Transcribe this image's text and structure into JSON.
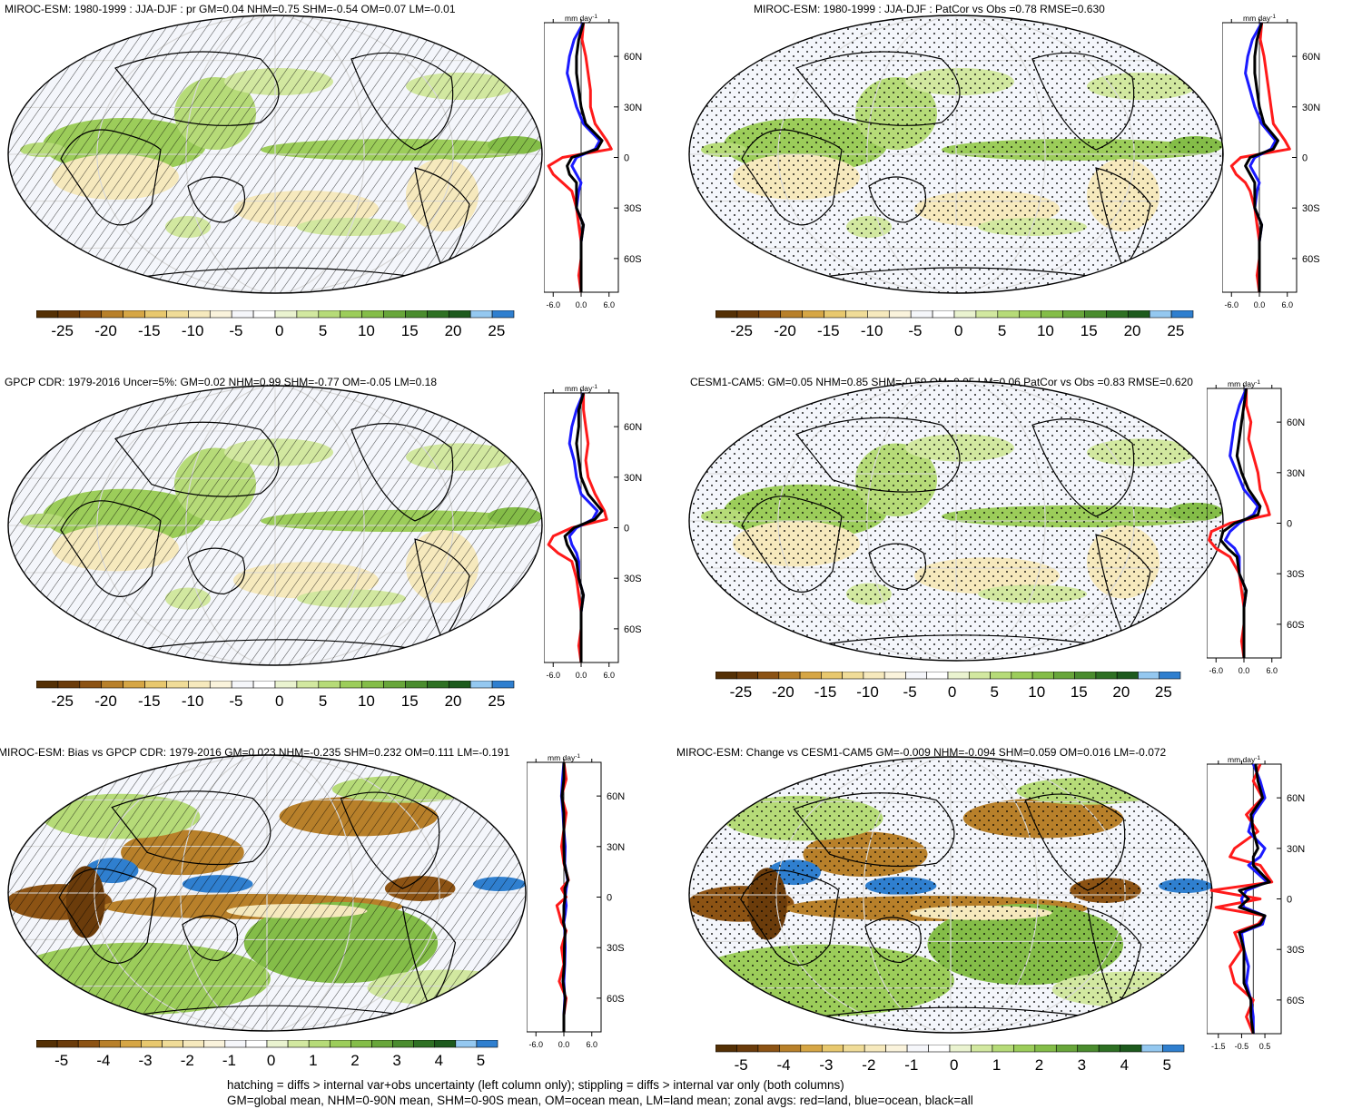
{
  "footer": {
    "line1": "hatching = diffs > internal var+obs uncertainty (left column only); stippling = diffs > internal var only (both columns)",
    "line2": "GM=global mean, NHM=0-90N mean, SHM=0-90S mean, OM=ocean mean, LM=land mean; zonal avgs: red=land, blue=ocean, black=all"
  },
  "colors": {
    "land": "#ff1a1a",
    "ocean": "#1a1aff",
    "all": "#000000",
    "palette": [
      "#543005",
      "#6b3c0b",
      "#8c5314",
      "#b8802a",
      "#d6a645",
      "#e8c86e",
      "#f0dc98",
      "#f6e9bd",
      "#faf3dc",
      "#f5f6fa",
      "#ffffff",
      "#eaf3d0",
      "#d2e8a0",
      "#b6db78",
      "#9ccd5a",
      "#84bd48",
      "#68a63a",
      "#4a8c2e",
      "#2e7023",
      "#1d5a1d",
      "#94c8f0",
      "#2f7fcf"
    ]
  },
  "panels": [
    {
      "title": "MIROC-ESM: 1980-1999 : JJA-DJF : pr GM=0.04 NHM=0.75 SHM=-0.54 OM=0.07 LM=-0.01",
      "units": "mm day",
      "units_exp": "-1",
      "cbar_labels": [
        "-25",
        "-20",
        "-15",
        "-10",
        "-5",
        "0",
        "5",
        "10",
        "15",
        "20",
        "25"
      ],
      "zonal_xticks": [
        "-6.0",
        "0.0",
        "6.0"
      ],
      "zonal_yticks": [
        "60N",
        "30N",
        "0",
        "30S",
        "60S"
      ],
      "hatch": "lines",
      "chart_data": {
        "type": "line",
        "xlim": [
          -8,
          8
        ],
        "lat": [
          80,
          70,
          60,
          50,
          40,
          30,
          20,
          10,
          5,
          0,
          -5,
          -10,
          -15,
          -20,
          -30,
          -40,
          -50,
          -60,
          -70,
          -80
        ],
        "series": [
          {
            "name": "land",
            "values": [
              0.5,
              0.2,
              1.0,
              1.5,
              2.0,
              2.0,
              3.0,
              5.5,
              6.5,
              -4.0,
              -7.0,
              -6.0,
              -4.0,
              -2.0,
              -1.0,
              -0.5,
              0.0,
              0.0,
              -0.5,
              0.0
            ]
          },
          {
            "name": "ocean",
            "values": [
              0.5,
              -1.5,
              -2.5,
              -3.0,
              -2.0,
              -1.0,
              0.5,
              4.0,
              3.0,
              -1.0,
              -2.0,
              -1.0,
              0.0,
              -0.5,
              -1.0,
              0.5,
              0.0,
              0.0,
              0.0,
              0.0
            ]
          },
          {
            "name": "all",
            "values": [
              0.5,
              -0.5,
              -1.0,
              -1.0,
              -0.5,
              0.0,
              1.0,
              4.5,
              3.5,
              -2.0,
              -3.0,
              -2.5,
              -1.0,
              -1.0,
              -1.0,
              0.5,
              0.0,
              0.0,
              0.0,
              0.0
            ]
          }
        ]
      }
    },
    {
      "title": "MIROC-ESM: 1980-1999 : JJA-DJF : PatCor vs Obs =0.78 RMSE=0.630",
      "units": "mm day",
      "units_exp": "-1",
      "cbar_labels": [
        "-25",
        "-20",
        "-15",
        "-10",
        "-5",
        "0",
        "5",
        "10",
        "15",
        "20",
        "25"
      ],
      "zonal_xticks": [
        "-6.0",
        "0.0",
        "6.0"
      ],
      "zonal_yticks": [
        "60N",
        "30N",
        "0",
        "30S",
        "60S"
      ],
      "hatch": "dots",
      "chart_data": {
        "type": "line",
        "xlim": [
          -8,
          8
        ],
        "lat": [
          80,
          70,
          60,
          50,
          40,
          30,
          20,
          10,
          5,
          0,
          -5,
          -10,
          -15,
          -20,
          -30,
          -40,
          -50,
          -60,
          -70,
          -80
        ],
        "series": [
          {
            "name": "land",
            "values": [
              0.5,
              0.2,
              1.0,
              1.5,
              2.0,
              2.5,
              3.0,
              5.5,
              6.5,
              -4.0,
              -6.0,
              -5.0,
              -3.0,
              -2.0,
              -1.0,
              -0.5,
              0.0,
              0.0,
              -0.5,
              0.0
            ]
          },
          {
            "name": "ocean",
            "values": [
              0.5,
              -1.5,
              -2.5,
              -3.0,
              -2.0,
              -1.0,
              0.5,
              3.5,
              2.5,
              -1.0,
              -2.0,
              -1.0,
              0.0,
              -0.5,
              -1.0,
              0.5,
              0.0,
              0.0,
              0.0,
              0.0
            ]
          },
          {
            "name": "all",
            "values": [
              0.5,
              -0.5,
              -1.0,
              -1.0,
              -0.5,
              0.0,
              1.0,
              4.0,
              3.0,
              -2.0,
              -3.0,
              -2.0,
              -1.0,
              -1.0,
              -1.0,
              0.5,
              0.0,
              0.0,
              0.0,
              0.0
            ]
          }
        ]
      }
    },
    {
      "title": "GPCP CDR: 1979-2016 Uncer=5%: GM=0.02 NHM=0.99 SHM=-0.77 OM=-0.05 LM=0.18",
      "units": "mm day",
      "units_exp": "-1",
      "cbar_labels": [
        "-25",
        "-20",
        "-15",
        "-10",
        "-5",
        "0",
        "5",
        "10",
        "15",
        "20",
        "25"
      ],
      "zonal_xticks": [
        "-6.0",
        "0.0",
        "6.0"
      ],
      "zonal_yticks": [
        "60N",
        "30N",
        "0",
        "30S",
        "60S"
      ],
      "hatch": "lines",
      "chart_data": {
        "type": "line",
        "xlim": [
          -8,
          8
        ],
        "lat": [
          80,
          70,
          60,
          50,
          40,
          30,
          20,
          10,
          5,
          0,
          -5,
          -10,
          -15,
          -20,
          -30,
          -40,
          -50,
          -60,
          -70,
          -80
        ],
        "series": [
          {
            "name": "land",
            "values": [
              0.5,
              0.5,
              1.0,
              1.5,
              1.0,
              1.5,
              3.0,
              5.0,
              5.5,
              -2.0,
              -6.0,
              -7.0,
              -5.0,
              -2.0,
              -1.0,
              -0.5,
              0.0,
              0.0,
              -0.5,
              0.0
            ]
          },
          {
            "name": "ocean",
            "values": [
              0.5,
              -1.0,
              -2.0,
              -2.5,
              -1.5,
              -1.0,
              0.0,
              3.5,
              2.5,
              -1.0,
              -2.5,
              -2.0,
              -1.0,
              -0.5,
              -0.5,
              0.5,
              0.0,
              0.0,
              0.0,
              0.0
            ]
          },
          {
            "name": "all",
            "values": [
              0.5,
              -0.5,
              -0.5,
              -1.0,
              -0.5,
              0.0,
              1.5,
              4.5,
              3.0,
              -1.5,
              -3.5,
              -3.0,
              -2.0,
              -1.0,
              -0.5,
              0.5,
              0.0,
              0.0,
              0.0,
              0.0
            ]
          }
        ]
      }
    },
    {
      "title": "CESM1-CAM5: GM=0.05 NHM=0.85 SHM=-0.59 OM=0.05 LM=0.06 PatCor vs Obs =0.83 RMSE=0.620",
      "units": "mm day",
      "units_exp": "-1",
      "cbar_labels": [
        "-25",
        "-20",
        "-15",
        "-10",
        "-5",
        "0",
        "5",
        "10",
        "15",
        "20",
        "25"
      ],
      "zonal_xticks": [
        "-6.0",
        "0.0",
        "6.0"
      ],
      "zonal_yticks": [
        "60N",
        "30N",
        "0",
        "30S",
        "60S"
      ],
      "hatch": "dots",
      "chart_data": {
        "type": "line",
        "xlim": [
          -8,
          8
        ],
        "lat": [
          80,
          70,
          60,
          50,
          40,
          30,
          20,
          10,
          5,
          0,
          -5,
          -10,
          -15,
          -20,
          -30,
          -40,
          -50,
          -60,
          -70,
          -80
        ],
        "series": [
          {
            "name": "land",
            "values": [
              0.5,
              0.5,
              1.5,
              1.0,
              2.0,
              3.0,
              3.5,
              5.0,
              5.5,
              -3.0,
              -7.0,
              -7.5,
              -6.0,
              -3.0,
              -1.0,
              -0.5,
              0.0,
              0.0,
              -0.5,
              0.0
            ]
          },
          {
            "name": "ocean",
            "values": [
              0.5,
              -1.0,
              -2.0,
              -2.5,
              -3.0,
              -1.5,
              0.0,
              3.0,
              2.0,
              -1.0,
              -3.0,
              -4.0,
              -2.0,
              -1.0,
              -1.0,
              0.5,
              0.0,
              0.0,
              0.0,
              0.0
            ]
          },
          {
            "name": "all",
            "values": [
              0.5,
              0.0,
              -0.5,
              -1.0,
              -1.5,
              -0.5,
              1.0,
              3.5,
              3.0,
              -2.0,
              -4.5,
              -5.0,
              -3.5,
              -1.5,
              -1.0,
              0.5,
              0.0,
              0.0,
              0.0,
              0.0
            ]
          }
        ]
      }
    },
    {
      "title": "MIROC-ESM: Bias vs GPCP CDR: 1979-2016 GM=0.023 NHM=-0.235 SHM=0.232 OM=0.111 LM=-0.191",
      "units": "mm day",
      "units_exp": "-1",
      "cbar_labels": [
        "-5",
        "-4",
        "-3",
        "-2",
        "-1",
        "0",
        "1",
        "2",
        "3",
        "4",
        "5"
      ],
      "zonal_xticks": [
        "-6.0",
        "0.0",
        "6.0"
      ],
      "zonal_yticks": [
        "60N",
        "30N",
        "0",
        "30S",
        "60S"
      ],
      "hatch": "lines",
      "chart_data": {
        "type": "line",
        "xlim": [
          -8,
          8
        ],
        "lat": [
          80,
          70,
          60,
          50,
          40,
          30,
          20,
          10,
          5,
          0,
          -5,
          -10,
          -15,
          -20,
          -30,
          -40,
          -50,
          -60,
          -70,
          -80
        ],
        "series": [
          {
            "name": "land",
            "values": [
              0.0,
              0.5,
              -0.5,
              0.5,
              0.0,
              -0.5,
              0.0,
              1.0,
              -0.5,
              0.5,
              -1.5,
              -1.0,
              -0.5,
              0.5,
              -0.5,
              0.0,
              -1.0,
              0.5,
              0.0,
              0.0
            ]
          },
          {
            "name": "ocean",
            "values": [
              0.0,
              -0.3,
              -0.5,
              -0.2,
              0.0,
              0.3,
              0.2,
              0.8,
              0.5,
              0.3,
              0.5,
              0.3,
              0.0,
              0.2,
              0.3,
              0.2,
              0.0,
              0.2,
              0.0,
              0.0
            ]
          },
          {
            "name": "all",
            "values": [
              0.0,
              0.0,
              -0.4,
              0.0,
              0.0,
              0.0,
              0.1,
              0.9,
              0.2,
              0.3,
              0.0,
              0.0,
              -0.1,
              0.3,
              0.1,
              0.1,
              -0.2,
              0.3,
              0.0,
              0.0
            ]
          }
        ]
      }
    },
    {
      "title": "MIROC-ESM: Change vs CESM1-CAM5 GM=-0.009 NHM=-0.094 SHM=0.059 OM=0.016 LM=-0.072",
      "units": "mm day",
      "units_exp": "-1",
      "cbar_labels": [
        "-5",
        "-4",
        "-3",
        "-2",
        "-1",
        "0",
        "1",
        "2",
        "3",
        "4",
        "5"
      ],
      "zonal_xticks": [
        "-1.5",
        "-0.5",
        "0.5"
      ],
      "zonal_yticks": [
        "60N",
        "30N",
        "0",
        "30S",
        "60S"
      ],
      "hatch": "dots",
      "chart_data": {
        "type": "line",
        "xlim": [
          -2.0,
          1.2
        ],
        "lat": [
          80,
          70,
          60,
          50,
          40,
          30,
          25,
          20,
          10,
          5,
          0,
          -5,
          -10,
          -15,
          -20,
          -30,
          -40,
          -50,
          -60,
          -70,
          -80
        ],
        "series": [
          {
            "name": "land",
            "values": [
              0.3,
              0.0,
              0.4,
              -0.3,
              0.2,
              -0.8,
              -1.0,
              0.3,
              0.8,
              -1.8,
              0.3,
              -1.6,
              0.5,
              0.2,
              -0.8,
              -0.5,
              -1.0,
              -0.8,
              0.0,
              -0.3,
              0.0
            ]
          },
          {
            "name": "ocean",
            "values": [
              0.0,
              0.3,
              0.5,
              0.0,
              -0.2,
              0.5,
              0.3,
              -0.2,
              0.6,
              -0.3,
              -0.5,
              -0.4,
              0.5,
              0.4,
              -0.5,
              -0.4,
              -0.2,
              -0.3,
              -0.1,
              0.0,
              0.0
            ]
          },
          {
            "name": "all",
            "values": [
              0.1,
              0.2,
              0.4,
              -0.1,
              0.0,
              0.2,
              0.0,
              0.0,
              0.7,
              -0.6,
              -0.2,
              -0.6,
              0.5,
              0.3,
              -0.6,
              -0.4,
              -0.4,
              -0.4,
              -0.1,
              -0.1,
              0.0
            ]
          }
        ]
      }
    }
  ]
}
